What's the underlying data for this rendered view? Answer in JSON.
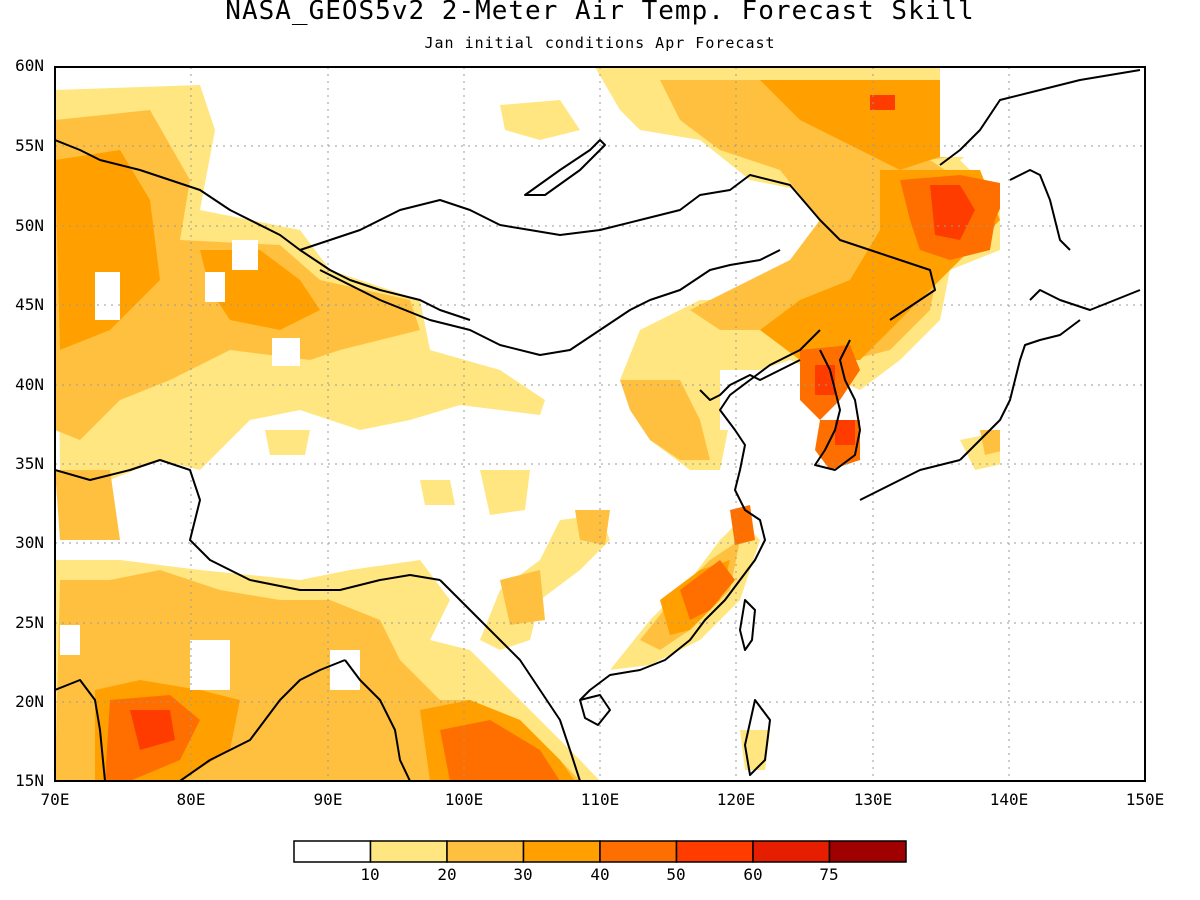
{
  "title": "NASA_GEOS5v2 2-Meter Air Temp. Forecast Skill",
  "subtitle": "Jan initial conditions  Apr Forecast",
  "map": {
    "lon_range": [
      70,
      150
    ],
    "lat_range": [
      15,
      60
    ],
    "lat_ticks": [
      "60N",
      "55N",
      "50N",
      "45N",
      "40N",
      "35N",
      "30N",
      "25N",
      "20N",
      "15N"
    ],
    "lon_ticks": [
      "70E",
      "80E",
      "90E",
      "100E",
      "110E",
      "120E",
      "130E",
      "140E",
      "150E"
    ],
    "gridlines": "dotted"
  },
  "colorbar": {
    "colors": [
      "#ffffff",
      "#ffe680",
      "#ffc040",
      "#ffa000",
      "#ff6f00",
      "#ff3c00",
      "#e61e00",
      "#a00000"
    ],
    "labels": [
      "10",
      "20",
      "30",
      "40",
      "50",
      "60",
      "75"
    ]
  },
  "icons": {
    "land_outline": "coastline-border-lines"
  }
}
